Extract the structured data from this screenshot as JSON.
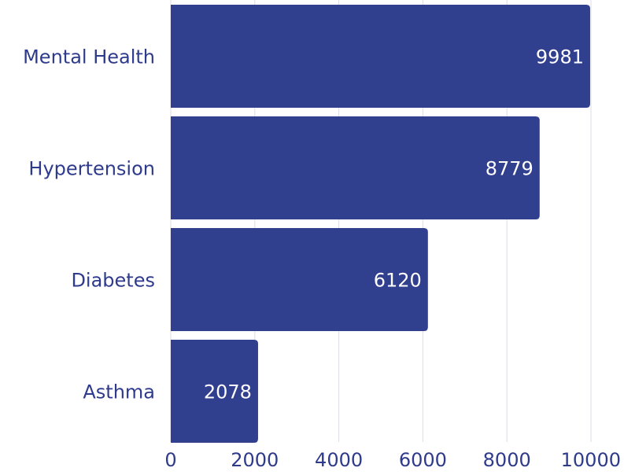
{
  "chart_data": {
    "type": "bar",
    "orientation": "horizontal",
    "categories": [
      "Mental Health",
      "Hypertension",
      "Diabetes",
      "Asthma"
    ],
    "values": [
      9981,
      8779,
      6120,
      2078
    ],
    "value_labels": [
      "9981",
      "8779",
      "6120",
      "2078"
    ],
    "x_ticks": [
      "0",
      "2000",
      "4000",
      "6000",
      "8000",
      "10000"
    ],
    "xlim": [
      0,
      10000
    ],
    "grid": "vertical",
    "title": "",
    "xlabel": "",
    "ylabel": "",
    "bar_color": "#313f8f",
    "text_color": "#2e3a8c",
    "value_label_color": "#ffffff",
    "grid_color": "#dcdce4"
  }
}
